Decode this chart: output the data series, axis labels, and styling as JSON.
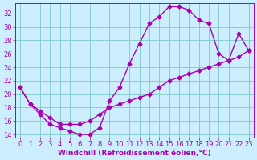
{
  "xlabel": "Windchill (Refroidissement éolien,°C)",
  "bg_color": "#cceeff",
  "grid_color": "#88cccc",
  "line_color": "#aa00aa",
  "xlim": [
    -0.5,
    23.5
  ],
  "ylim": [
    13.5,
    33.5
  ],
  "xticks": [
    0,
    1,
    2,
    3,
    4,
    5,
    6,
    7,
    8,
    9,
    10,
    11,
    12,
    13,
    14,
    15,
    16,
    17,
    18,
    19,
    20,
    21,
    22,
    23
  ],
  "yticks": [
    14,
    16,
    18,
    20,
    22,
    24,
    26,
    28,
    30,
    32
  ],
  "curve1_x": [
    0,
    1,
    2,
    3,
    4,
    5,
    6,
    7,
    8,
    9,
    10,
    11,
    12,
    13,
    14,
    15,
    16,
    17,
    18,
    19,
    20,
    21,
    22,
    23
  ],
  "curve1_y": [
    21,
    18.5,
    17,
    15.5,
    15,
    14.5,
    14,
    14,
    15,
    19,
    21,
    24.5,
    27.5,
    30.5,
    31.5,
    33,
    33,
    32.5,
    31,
    30.5,
    26,
    25,
    29,
    26.5
  ],
  "curve2_x": [
    0,
    1,
    2,
    3,
    4,
    5,
    6,
    7,
    8,
    9,
    10,
    11,
    12,
    13,
    14,
    15,
    16,
    17,
    18,
    19,
    20,
    21,
    22,
    23
  ],
  "curve2_y": [
    21,
    18.5,
    17.5,
    16.5,
    15.5,
    15.5,
    15.5,
    16,
    17,
    18,
    18.5,
    19,
    19.5,
    20,
    21,
    22,
    22.5,
    23,
    23.5,
    24,
    24.5,
    25,
    25.5,
    26.5
  ],
  "marker": "D",
  "marker_size": 2.5,
  "line_width": 1.0,
  "xlabel_fontsize": 6.5,
  "tick_fontsize": 6.0
}
